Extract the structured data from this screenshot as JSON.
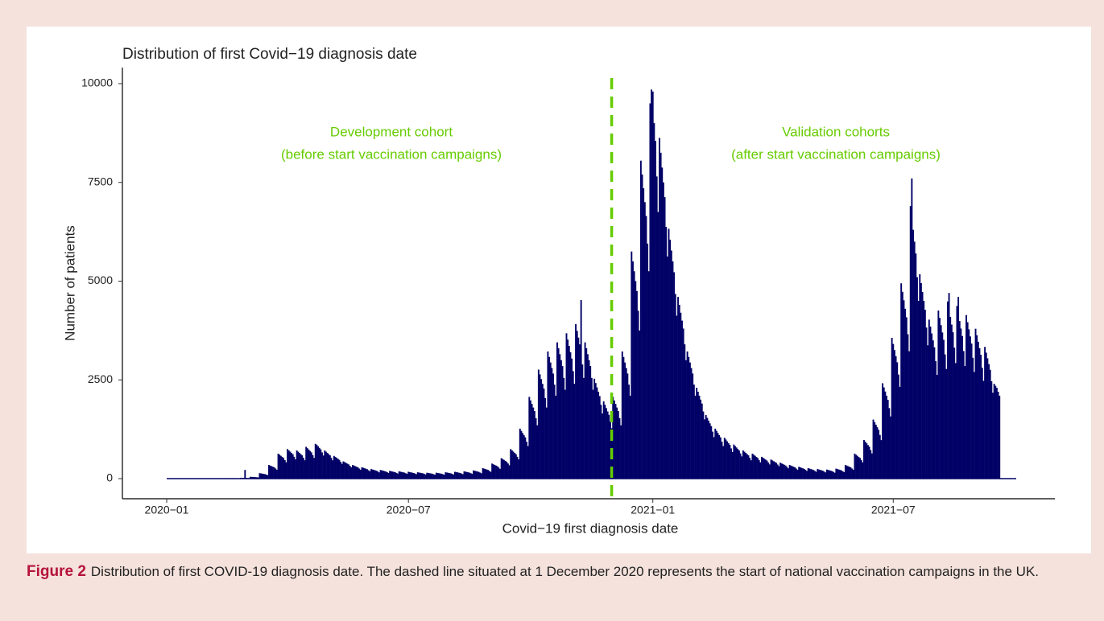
{
  "chart_data": {
    "type": "bar",
    "title": "Distribution of first Covid−19 diagnosis date",
    "x_label": "Covid−19 first diagnosis date",
    "y_label": "Number of patients",
    "annotations": [
      [
        "Development cohort",
        "(before start vaccination campaigns)"
      ],
      [
        "Validation cohorts",
        "(after start vaccination campaigns)"
      ]
    ],
    "annotation_color": "#66cc00",
    "reference_line": {
      "index": 335,
      "color": "#66cc00",
      "dashed": true
    },
    "color": "#000066",
    "ylim": [
      -509,
      10407
    ],
    "yticks": [
      0,
      2500,
      5000,
      7500,
      10000
    ],
    "grid": false,
    "categories": [
      "2020−01",
      null,
      null,
      null,
      null,
      null,
      null,
      null,
      null,
      null,
      null,
      null,
      null,
      null,
      null,
      null,
      null,
      null,
      null,
      null,
      null,
      null,
      null,
      null,
      null,
      null,
      null,
      null,
      null,
      null,
      null,
      null,
      null,
      null,
      null,
      null,
      null,
      null,
      null,
      null,
      null,
      null,
      null,
      null,
      null,
      null,
      null,
      null,
      null,
      null,
      null,
      null,
      null,
      null,
      null,
      null,
      null,
      null,
      null,
      null,
      null,
      null,
      null,
      null,
      null,
      null,
      null,
      null,
      null,
      null,
      null,
      null,
      null,
      null,
      null,
      null,
      null,
      null,
      null,
      null,
      null,
      null,
      null,
      null,
      null,
      null,
      null,
      null,
      null,
      null,
      null,
      null,
      null,
      null,
      null,
      null,
      null,
      null,
      null,
      null,
      null,
      null,
      null,
      null,
      null,
      null,
      null,
      null,
      null,
      null,
      null,
      null,
      null,
      null,
      null,
      null,
      null,
      null,
      null,
      null,
      null,
      null,
      null,
      null,
      null,
      null,
      null,
      null,
      null,
      null,
      null,
      null,
      null,
      null,
      null,
      null,
      null,
      null,
      null,
      null,
      null,
      null,
      null,
      null,
      null,
      null,
      null,
      null,
      null,
      null,
      null,
      null,
      null,
      null,
      null,
      null,
      null,
      null,
      null,
      null,
      null,
      null,
      null,
      null,
      null,
      null,
      null,
      null,
      null,
      null,
      null,
      null,
      null,
      null,
      null,
      null,
      null,
      null,
      null,
      null,
      null,
      null,
      "2020−07",
      null,
      null,
      null,
      null,
      null,
      null,
      null,
      null,
      null,
      null,
      null,
      null,
      null,
      null,
      null,
      null,
      null,
      null,
      null,
      null,
      null,
      null,
      null,
      null,
      null,
      null,
      null,
      null,
      null,
      null,
      null,
      null,
      null,
      null,
      null,
      null,
      null,
      null,
      null,
      null,
      null,
      null,
      null,
      null,
      null,
      null,
      null,
      null,
      null,
      null,
      null,
      null,
      null,
      null,
      null,
      null,
      null,
      null,
      null,
      null,
      null,
      null,
      null,
      null,
      null,
      null,
      null,
      null,
      null,
      null,
      null,
      null,
      null,
      null,
      null,
      null,
      null,
      null,
      null,
      null,
      null,
      null,
      null,
      null,
      null,
      null,
      null,
      null,
      null,
      null,
      null,
      null,
      null,
      null,
      null,
      null,
      null,
      null,
      null,
      null,
      null,
      null,
      null,
      null,
      null,
      null,
      null,
      null,
      null,
      null,
      null,
      null,
      null,
      null,
      null,
      null,
      null,
      null,
      null,
      null,
      null,
      null,
      null,
      null,
      null,
      null,
      null,
      null,
      null,
      null,
      null,
      null,
      null,
      null,
      null,
      null,
      null,
      null,
      null,
      null,
      null,
      null,
      null,
      null,
      null,
      null,
      null,
      null,
      null,
      null,
      null,
      null,
      null,
      null,
      null,
      null,
      null,
      null,
      null,
      null,
      null,
      null,
      null,
      null,
      null,
      null,
      null,
      null,
      null,
      null,
      null,
      null,
      null,
      null,
      null,
      null,
      null,
      null,
      null,
      null,
      null,
      null,
      null,
      "2021−01",
      null,
      null,
      null,
      null,
      null,
      null,
      null,
      null,
      null,
      null,
      null,
      null,
      null,
      null,
      null,
      null,
      null,
      null,
      null,
      null,
      null,
      null,
      null,
      null,
      null,
      null,
      null,
      null,
      null,
      null,
      null,
      null,
      null,
      null,
      null,
      null,
      null,
      null,
      null,
      null,
      null,
      null,
      null,
      null,
      null,
      null,
      null,
      null,
      null,
      null,
      null,
      null,
      null,
      null,
      null,
      null,
      null,
      null,
      null,
      null,
      null,
      null,
      null,
      null,
      null,
      null,
      null,
      null,
      null,
      null,
      null,
      null,
      null,
      null,
      null,
      null,
      null,
      null,
      null,
      null,
      null,
      null,
      null,
      null,
      null,
      null,
      null,
      null,
      null,
      null,
      null,
      null,
      null,
      null,
      null,
      null,
      null,
      null,
      null,
      null,
      null,
      null,
      null,
      null,
      null,
      null,
      null,
      null,
      null,
      null,
      null,
      null,
      null,
      null,
      null,
      null,
      null,
      null,
      null,
      null,
      null,
      null,
      null,
      null,
      null,
      null,
      null,
      null,
      null,
      null,
      null,
      null,
      null,
      null,
      null,
      null,
      null,
      null,
      null,
      null,
      null,
      null,
      null,
      null,
      null,
      null,
      null,
      null,
      null,
      null,
      null,
      null,
      null,
      null,
      null,
      null,
      null,
      null,
      null,
      null,
      null,
      null,
      null,
      null,
      null,
      null,
      null,
      null,
      null,
      null,
      null,
      null,
      null,
      null,
      null,
      null,
      null,
      null,
      null,
      null,
      "2021−07",
      null,
      null,
      null,
      null,
      null,
      null,
      null,
      null,
      null,
      null,
      null,
      null,
      null,
      null,
      null,
      null,
      null,
      null,
      null,
      null,
      null,
      null,
      null,
      null,
      null,
      null,
      null,
      null,
      null,
      null,
      null,
      null,
      null,
      null,
      null,
      null,
      null,
      null,
      null,
      null,
      null,
      null,
      null,
      null,
      null,
      null,
      null,
      null,
      null,
      null,
      null,
      null,
      null,
      null,
      null,
      null,
      null,
      null,
      null,
      null,
      null,
      null,
      null,
      null,
      null,
      null,
      null,
      null,
      null,
      null,
      null,
      null,
      null,
      null,
      null,
      null,
      null,
      null,
      null,
      null
    ],
    "values": [
      0,
      0,
      1,
      0,
      0,
      0,
      0,
      0,
      1,
      0,
      0,
      1,
      0,
      0,
      1,
      0,
      0,
      1,
      0,
      0,
      0,
      2,
      3,
      2,
      2,
      1,
      1,
      1,
      3,
      2,
      2,
      2,
      2,
      1,
      1,
      4,
      3,
      3,
      3,
      3,
      2,
      2,
      6,
      6,
      5,
      5,
      5,
      4,
      3,
      12,
      11,
      10,
      10,
      9,
      8,
      7,
      22,
      21,
      20,
      220,
      19,
      17,
      15,
      46,
      44,
      42,
      40,
      38,
      34,
      30,
      138,
      132,
      126,
      120,
      114,
      102,
      90,
      345,
      330,
      315,
      300,
      285,
      255,
      225,
      632,
      605,
      578,
      550,
      523,
      468,
      413,
      748,
      715,
      683,
      650,
      618,
      553,
      488,
      713,
      682,
      651,
      620,
      589,
      527,
      465,
      805,
      770,
      735,
      700,
      665,
      595,
      525,
      880,
      858,
      819,
      780,
      741,
      663,
      585,
      713,
      682,
      651,
      620,
      589,
      527,
      465,
      575,
      550,
      525,
      500,
      475,
      425,
      375,
      437,
      418,
      399,
      380,
      361,
      323,
      285,
      345,
      330,
      315,
      300,
      285,
      255,
      225,
      288,
      275,
      263,
      250,
      238,
      213,
      188,
      242,
      231,
      221,
      210,
      200,
      179,
      158,
      219,
      209,
      200,
      190,
      181,
      162,
      143,
      196,
      187,
      179,
      170,
      162,
      145,
      128,
      184,
      176,
      168,
      160,
      152,
      136,
      120,
      173,
      165,
      158,
      150,
      143,
      128,
      113,
      161,
      154,
      147,
      140,
      133,
      119,
      105,
      150,
      143,
      137,
      130,
      124,
      111,
      98,
      150,
      143,
      137,
      130,
      124,
      111,
      98,
      161,
      154,
      147,
      140,
      133,
      119,
      105,
      173,
      165,
      158,
      150,
      143,
      128,
      113,
      184,
      176,
      168,
      160,
      152,
      136,
      120,
      207,
      198,
      189,
      180,
      171,
      153,
      135,
      265,
      253,
      242,
      230,
      219,
      196,
      173,
      380,
      363,
      347,
      330,
      314,
      281,
      248,
      518,
      495,
      473,
      450,
      428,
      383,
      338,
      748,
      715,
      683,
      650,
      618,
      553,
      488,
      1265,
      1210,
      1155,
      1100,
      1045,
      935,
      825,
      2070,
      1980,
      1890,
      1800,
      1710,
      1530,
      1350,
      2760,
      2640,
      2520,
      2400,
      2280,
      2040,
      1800,
      3220,
      3080,
      2940,
      2800,
      2660,
      2380,
      2100,
      3450,
      3300,
      3150,
      3000,
      2850,
      2550,
      2250,
      3680,
      3520,
      3360,
      3200,
      3040,
      2720,
      2400,
      3910,
      3740,
      3570,
      3400,
      4520,
      2890,
      2550,
      3450,
      3300,
      3150,
      3000,
      2850,
      2550,
      2250,
      2530,
      2420,
      2310,
      2200,
      2090,
      1870,
      1650,
      1955,
      1870,
      1785,
      1700,
      1615,
      1445,
      1275,
      2070,
      1980,
      1890,
      1800,
      1710,
      1530,
      1350,
      3220,
      3080,
      2940,
      2800,
      2660,
      2380,
      2100,
      5750,
      5500,
      5250,
      5000,
      4750,
      4250,
      3750,
      8050,
      7700,
      7350,
      7000,
      6650,
      5950,
      5250,
      9500,
      9850,
      9800,
      9000,
      8550,
      7650,
      6750,
      8625,
      8250,
      7875,
      7500,
      7125,
      6375,
      5625,
      6325,
      6050,
      5775,
      5500,
      5225,
      4675,
      4125,
      4600,
      4400,
      4200,
      4000,
      3800,
      3400,
      3000,
      3220,
      3080,
      2940,
      2800,
      2660,
      2380,
      2100,
      2300,
      2200,
      2100,
      2000,
      1900,
      1700,
      1500,
      1610,
      1540,
      1470,
      1400,
      1330,
      1190,
      1050,
      1265,
      1210,
      1155,
      1100,
      1045,
      935,
      825,
      1035,
      990,
      945,
      900,
      855,
      765,
      675,
      863,
      825,
      788,
      750,
      713,
      638,
      563,
      713,
      682,
      651,
      620,
      589,
      527,
      465,
      633,
      605,
      578,
      550,
      523,
      468,
      413,
      552,
      528,
      504,
      480,
      456,
      408,
      360,
      483,
      462,
      441,
      420,
      399,
      357,
      315,
      403,
      385,
      368,
      350,
      333,
      298,
      263,
      345,
      330,
      315,
      300,
      285,
      255,
      225,
      299,
      286,
      273,
      260,
      247,
      221,
      195,
      265,
      253,
      242,
      230,
      219,
      196,
      173,
      242,
      231,
      221,
      210,
      200,
      179,
      158,
      230,
      220,
      210,
      200,
      190,
      170,
      150,
      253,
      242,
      231,
      220,
      209,
      187,
      165,
      345,
      330,
      315,
      300,
      285,
      255,
      225,
      633,
      605,
      578,
      550,
      523,
      468,
      413,
      978,
      935,
      893,
      850,
      808,
      723,
      638,
      1495,
      1430,
      1365,
      1300,
      1235,
      1105,
      975,
      2415,
      2310,
      2205,
      2100,
      1995,
      1785,
      1575,
      3565,
      3410,
      3255,
      3100,
      2945,
      2635,
      2325,
      4945,
      4730,
      4515,
      4300,
      4085,
      3655,
      3225,
      6900,
      7600,
      6300,
      6000,
      5700,
      5100,
      4500,
      5175,
      4950,
      4725,
      4500,
      4275,
      3825,
      3375,
      4025,
      3850,
      3675,
      3500,
      3325,
      2975,
      2625,
      4255,
      4070,
      3885,
      3700,
      3515,
      3145,
      2775,
      4485,
      4700,
      4095,
      3900,
      3705,
      3315,
      2925,
      4370,
      4600,
      3990,
      3800,
      3610,
      3230,
      2850,
      4140,
      3960,
      3780,
      3600,
      3420,
      3060,
      2700,
      3795,
      3630,
      3465,
      3300,
      3135,
      2805,
      2475,
      3335,
      3190,
      3045,
      2900,
      2755,
      2465,
      2175,
      2400,
      2350,
      2300,
      2200,
      2100
    ]
  },
  "caption": {
    "label": "Figure 2",
    "text": "Distribution of first COVID-19 diagnosis date. The dashed line situated at 1 December 2020 represents the start of national vaccination campaigns in the UK."
  }
}
